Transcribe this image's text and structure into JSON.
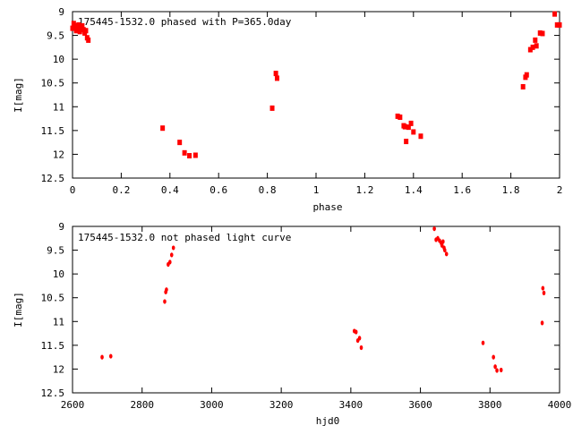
{
  "chart_data": [
    {
      "type": "scatter",
      "title": "175445-1532.0 phased with P=365.0day",
      "xlabel": "phase",
      "ylabel": "I[mag]",
      "xlim": [
        0,
        2
      ],
      "ylim": [
        9,
        12.5
      ],
      "y_inverted": true,
      "grid": false,
      "marker_color": "#ff0000",
      "x_ticks": [
        0,
        0.2,
        0.4,
        0.6,
        0.8,
        1,
        1.2,
        1.4,
        1.6,
        1.8,
        2
      ],
      "x_tick_labels": [
        "0",
        "0.2",
        "0.4",
        "0.6",
        "0.8",
        "1",
        "1.2",
        "1.4",
        "1.6",
        "1.8",
        "2"
      ],
      "y_ticks": [
        9,
        9.5,
        10,
        10.5,
        11,
        11.5,
        12,
        12.5
      ],
      "y_tick_labels": [
        "9",
        "9.5",
        "10",
        "10.5",
        "11",
        "11.5",
        "12",
        "12.5"
      ],
      "series": [
        {
          "x": [
            0.0,
            0.005,
            0.01,
            0.015,
            0.02,
            0.025,
            0.03,
            0.035,
            0.04,
            0.045,
            0.05,
            0.055,
            0.06,
            0.065,
            0.37,
            0.44,
            0.46,
            0.48,
            0.505,
            0.82,
            0.835,
            0.84,
            1.335,
            1.345,
            1.36,
            1.365,
            1.38,
            1.39,
            1.4,
            1.43,
            1.37,
            1.85,
            1.86,
            1.865,
            1.88,
            1.89,
            1.9,
            1.905,
            1.92,
            1.93,
            1.98,
            1.99,
            2.0
          ],
          "y": [
            9.35,
            9.25,
            9.3,
            9.4,
            9.33,
            9.28,
            9.42,
            9.35,
            9.3,
            9.38,
            9.45,
            9.4,
            9.55,
            9.6,
            11.45,
            11.75,
            11.97,
            12.03,
            12.02,
            11.03,
            10.3,
            10.4,
            11.2,
            11.22,
            11.4,
            11.42,
            11.43,
            11.35,
            11.53,
            11.62,
            11.73,
            10.58,
            10.38,
            10.33,
            9.8,
            9.75,
            9.6,
            9.72,
            9.45,
            9.46,
            9.05,
            9.28,
            9.28
          ]
        }
      ]
    },
    {
      "type": "scatter",
      "title": "175445-1532.0 not phased light curve",
      "xlabel": "hjd0",
      "ylabel": "I[mag]",
      "xlim": [
        2600,
        4000
      ],
      "ylim": [
        9,
        12.5
      ],
      "y_inverted": true,
      "grid": false,
      "marker_color": "#ff0000",
      "x_ticks": [
        2600,
        2800,
        3000,
        3200,
        3400,
        3600,
        3800,
        4000
      ],
      "x_tick_labels": [
        "2600",
        "2800",
        "3000",
        "3200",
        "3400",
        "3600",
        "3800",
        "4000"
      ],
      "y_ticks": [
        9,
        9.5,
        10,
        10.5,
        11,
        11.5,
        12,
        12.5
      ],
      "y_tick_labels": [
        "9",
        "9.5",
        "10",
        "10.5",
        "11",
        "11.5",
        "12",
        "12.5"
      ],
      "series": [
        {
          "x": [
            2685,
            2710,
            2865,
            2868,
            2870,
            2875,
            2880,
            2885,
            2890,
            3410,
            3415,
            3420,
            3425,
            3430,
            3640,
            3645,
            3650,
            3655,
            3660,
            3662,
            3665,
            3668,
            3670,
            3675,
            3780,
            3810,
            3815,
            3820,
            3832,
            3950,
            3952,
            3955
          ],
          "y": [
            11.75,
            11.73,
            10.58,
            10.38,
            10.33,
            9.8,
            9.75,
            9.6,
            9.45,
            11.2,
            11.22,
            11.4,
            11.35,
            11.55,
            9.05,
            9.28,
            9.25,
            9.3,
            9.35,
            9.4,
            9.32,
            9.45,
            9.5,
            9.58,
            11.45,
            11.75,
            11.95,
            12.03,
            12.02,
            11.03,
            10.3,
            10.4
          ]
        }
      ]
    }
  ]
}
